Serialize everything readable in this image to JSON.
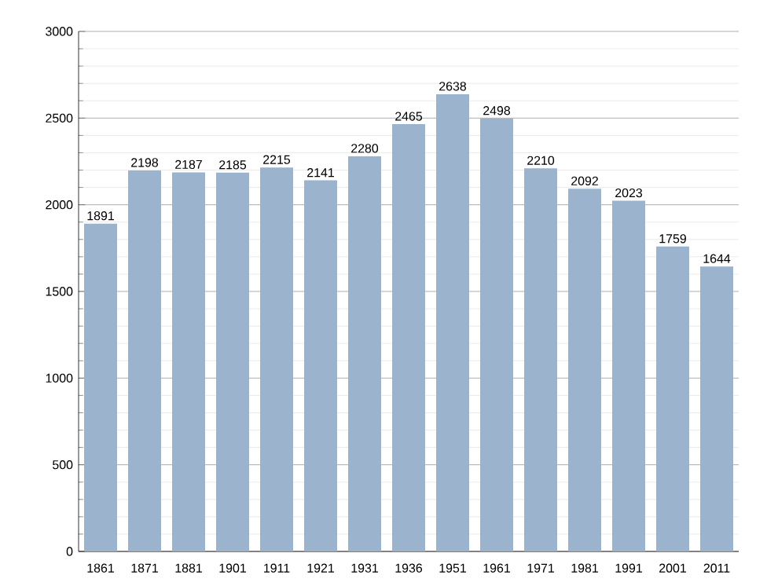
{
  "chart_data": {
    "type": "bar",
    "categories": [
      "1861",
      "1871",
      "1881",
      "1901",
      "1911",
      "1921",
      "1931",
      "1936",
      "1951",
      "1961",
      "1971",
      "1981",
      "1991",
      "2001",
      "2011"
    ],
    "values": [
      1891,
      2198,
      2187,
      2185,
      2215,
      2141,
      2280,
      2465,
      2638,
      2498,
      2210,
      2092,
      2023,
      1759,
      1644
    ],
    "color": "#9bb3cc",
    "ylim": [
      0,
      3000
    ],
    "yticks": [
      0,
      500,
      1000,
      1500,
      2000,
      2500,
      3000
    ],
    "grid": "y",
    "data_labels": true
  }
}
